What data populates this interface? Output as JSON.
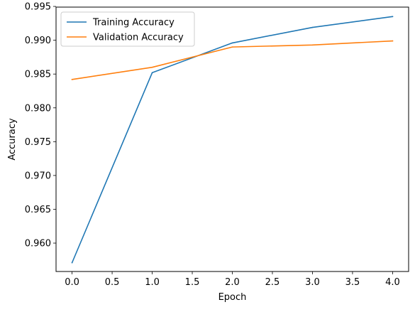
{
  "chart_data": {
    "type": "line",
    "title": "",
    "xlabel": "Epoch",
    "ylabel": "Accuracy",
    "xlim": [
      -0.2,
      4.2
    ],
    "ylim": [
      0.9558,
      0.9949
    ],
    "x_ticks": [
      0.0,
      0.5,
      1.0,
      1.5,
      2.0,
      2.5,
      3.0,
      3.5,
      4.0
    ],
    "x_tick_labels": [
      "0.0",
      "0.5",
      "1.0",
      "1.5",
      "2.0",
      "2.5",
      "3.0",
      "3.5",
      "4.0"
    ],
    "y_ticks": [
      0.96,
      0.965,
      0.97,
      0.975,
      0.98,
      0.985,
      0.99,
      0.995
    ],
    "y_tick_labels": [
      "0.960",
      "0.965",
      "0.970",
      "0.975",
      "0.980",
      "0.985",
      "0.990",
      "0.995"
    ],
    "grid": false,
    "legend_position": "top-left",
    "x": [
      0,
      1,
      2,
      3,
      4
    ],
    "series": [
      {
        "name": "Training Accuracy",
        "color": "#1f77b4",
        "values": [
          0.9571,
          0.9852,
          0.9896,
          0.9919,
          0.9935
        ]
      },
      {
        "name": "Validation Accuracy",
        "color": "#ff7f0e",
        "values": [
          0.9842,
          0.986,
          0.989,
          0.9893,
          0.9899
        ]
      }
    ]
  }
}
